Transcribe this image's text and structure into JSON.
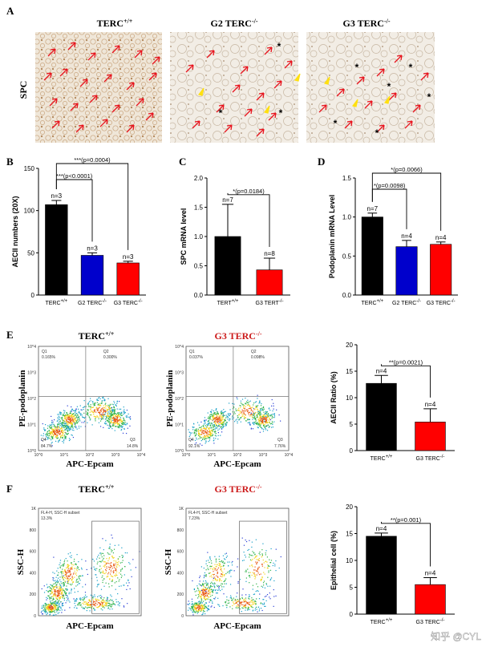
{
  "panels": {
    "A": "A",
    "B": "B",
    "C": "C",
    "D": "D",
    "E": "E",
    "F": "F"
  },
  "sideLabel": "SPC",
  "micrographs": [
    {
      "base": "TERC",
      "sup": "+/+"
    },
    {
      "base": "G2 TERC",
      "sup": "-/-"
    },
    {
      "base": "G3 TERC",
      "sup": "-/-"
    }
  ],
  "colors": {
    "black": "#000000",
    "blue": "#0000cc",
    "red": "#ff0000",
    "tissueBg": "#efe6d8",
    "cell": "#c9a57e",
    "arrow": "#e8141e",
    "yellow": "#ffe010",
    "g3title": "#cc1a1a"
  },
  "chart_data": [
    {
      "id": "B",
      "type": "bar",
      "ylabel": "AECII numbers (20X)",
      "ylim": [
        0,
        150
      ],
      "yticks": [
        "0",
        "50",
        "100",
        "150"
      ],
      "categories": [
        "TERC +/+",
        "G2 TERC -/-",
        "G3 TERC -/-"
      ],
      "values": [
        107,
        47,
        38
      ],
      "errors": [
        5,
        3,
        2
      ],
      "nlabels": [
        "n=3",
        "n=3",
        "n=3"
      ],
      "colors": [
        "#000000",
        "#0000cc",
        "#ff0000"
      ],
      "brackets": [
        {
          "from": 0,
          "to": 2,
          "text": "***(p=0.0004)"
        },
        {
          "from": 0,
          "to": 1,
          "text": "***(p<0.0001)"
        }
      ]
    },
    {
      "id": "C",
      "type": "bar",
      "ylabel": "SPC mRNA level",
      "ylim": [
        0,
        2.0
      ],
      "yticks": [
        "0.0",
        "0.5",
        "1.0",
        "1.5",
        "2.0"
      ],
      "categories": [
        "TERT+/+",
        "G3 TERT-/-"
      ],
      "values": [
        1.0,
        0.43
      ],
      "errors": [
        0.55,
        0.2
      ],
      "nlabels": [
        "n=7",
        "n=8"
      ],
      "colors": [
        "#000000",
        "#ff0000"
      ],
      "brackets": [
        {
          "from": 0,
          "to": 1,
          "text": "*(p=0.0184)"
        }
      ]
    },
    {
      "id": "D",
      "type": "bar",
      "ylabel": "Podoplanin mRNA Level",
      "ylim": [
        0,
        1.5
      ],
      "yticks": [
        "0.0",
        "0.5",
        "1.0",
        "1.5"
      ],
      "categories": [
        "TERC+/+",
        "G2 TERC-/-",
        "G3 TERC-/-"
      ],
      "values": [
        1.0,
        0.62,
        0.65
      ],
      "errors": [
        0.05,
        0.08,
        0.03
      ],
      "nlabels": [
        "n=7",
        "n=4",
        "n=4"
      ],
      "colors": [
        "#000000",
        "#0000cc",
        "#ff0000"
      ],
      "brackets": [
        {
          "from": 0,
          "to": 2,
          "text": "*(p=0.0066)"
        },
        {
          "from": 0,
          "to": 1,
          "text": "*(p=0.0098)"
        }
      ]
    },
    {
      "id": "E",
      "type": "bar",
      "ylabel": "AECII Ratio (%)",
      "ylim": [
        0,
        20
      ],
      "yticks": [
        "0",
        "5",
        "10",
        "15",
        "20"
      ],
      "categories": [
        "TERC+/+",
        "G3 TERC-/-"
      ],
      "values": [
        12.7,
        5.4
      ],
      "errors": [
        1.5,
        2.5
      ],
      "nlabels": [
        "n=4",
        "n=4"
      ],
      "colors": [
        "#000000",
        "#ff0000"
      ],
      "brackets": [
        {
          "from": 0,
          "to": 1,
          "text": "**(p=0.0021)"
        }
      ]
    },
    {
      "id": "F",
      "type": "bar",
      "ylabel": "Epithelial cell (%)",
      "ylim": [
        0,
        20
      ],
      "yticks": [
        "0",
        "5",
        "10",
        "15",
        "20"
      ],
      "categories": [
        "TERC+/+",
        "G3 TERC-/-"
      ],
      "values": [
        14.5,
        5.5
      ],
      "errors": [
        0.6,
        1.3
      ],
      "nlabels": [
        "n=4",
        "n=4"
      ],
      "colors": [
        "#000000",
        "#ff0000"
      ],
      "brackets": [
        {
          "from": 0,
          "to": 1,
          "text": "**(p=0.001)"
        }
      ]
    }
  ],
  "flowE": {
    "titles": [
      {
        "base": "TERC",
        "sup": "+/+"
      },
      {
        "base": "G3 TERC",
        "sup": "-/-"
      }
    ],
    "xlabel": "APC-Epcam",
    "ylabel": "PE-podoplanin",
    "plots": [
      {
        "q1": "Q1",
        "q1v": "0.165%",
        "q2": "Q2",
        "q2v": "0.300%",
        "q3": "Q3",
        "q3v": "14.8%",
        "q4": "Q4",
        "q4v": "84.7%"
      },
      {
        "q1": "Q1",
        "q1v": "0.037%",
        "q2": "Q2",
        "q2v": "0.098%",
        "q3": "Q3",
        "q3v": "7.76%",
        "q4": "Q4",
        "q4v": "92.1%"
      }
    ],
    "ticks": [
      "10^0",
      "10^1",
      "10^2",
      "10^3",
      "10^4"
    ]
  },
  "flowF": {
    "titles": [
      {
        "base": "TERC",
        "sup": "+/+"
      },
      {
        "base": "G3 TERC",
        "sup": "-/-"
      }
    ],
    "xlabel": "APC-Epcam",
    "ylabel": "SSC-H",
    "plots": [
      {
        "subset": "FL4-H, SSC-H subset",
        "value": "13.3%"
      },
      {
        "subset": "FL4-H, SSC-H subset",
        "value": "7.23%"
      }
    ],
    "yticks": [
      "0",
      "200",
      "400",
      "600",
      "800",
      "1K"
    ]
  },
  "watermark": "知乎 @CYL"
}
